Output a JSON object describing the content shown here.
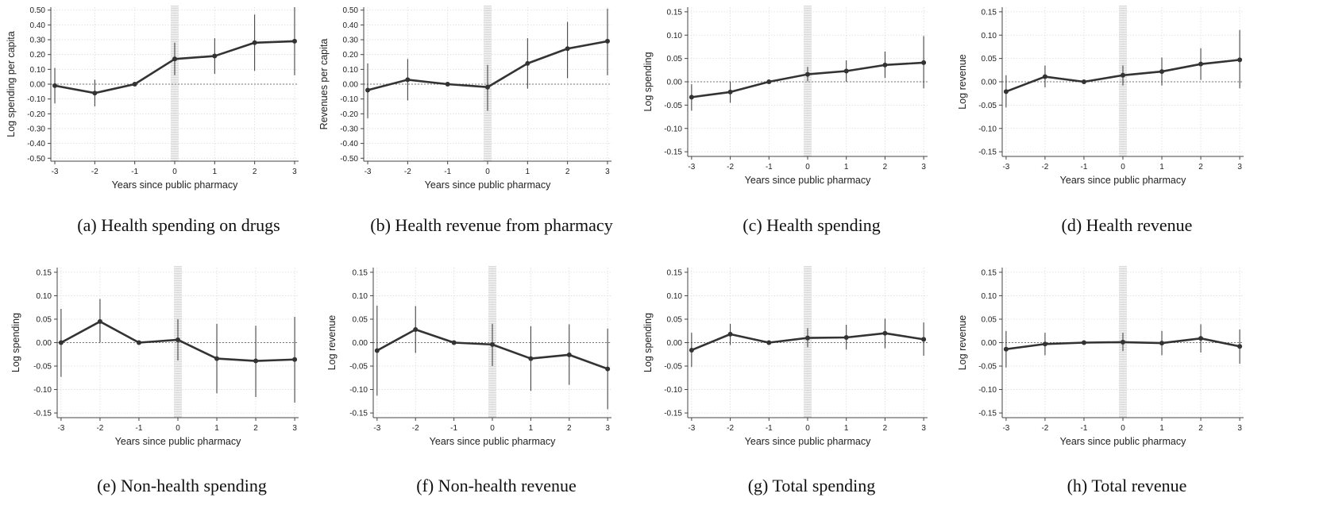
{
  "chart_data": [
    {
      "type": "line",
      "caption": "(a)  Health spending on drugs",
      "xlabel": "Years since public pharmacy",
      "ylabel": "Log spending per capita",
      "x": [
        -3,
        -2,
        -1,
        0,
        1,
        2,
        3
      ],
      "x_ticks": [
        "-3",
        "-2",
        "-1",
        "0",
        "1",
        "2",
        "3"
      ],
      "y_ticks": [
        "0.50",
        "0.40",
        "0.30",
        "0.20",
        "0.10",
        "0.00",
        "-0.10",
        "-0.20",
        "-0.30",
        "-0.40",
        "-0.50"
      ],
      "ylim": [
        -0.52,
        0.52
      ],
      "values": [
        -0.01,
        -0.06,
        0.0,
        0.17,
        0.19,
        0.28,
        0.29
      ],
      "ci_low": [
        -0.13,
        -0.15,
        0.0,
        0.06,
        0.07,
        0.09,
        0.06
      ],
      "ci_high": [
        0.11,
        0.03,
        0.0,
        0.28,
        0.31,
        0.47,
        0.52
      ],
      "event_line_x": 0,
      "zero_line": true
    },
    {
      "type": "line",
      "caption": "(b)  Health revenue from pharmacy",
      "xlabel": "Years since public pharmacy",
      "ylabel": "Revenues per capita",
      "x": [
        -3,
        -2,
        -1,
        0,
        1,
        2,
        3
      ],
      "x_ticks": [
        "-3",
        "-2",
        "-1",
        "0",
        "1",
        "2",
        "3"
      ],
      "y_ticks": [
        "0.50",
        "0.40",
        "0.30",
        "0.20",
        "0.10",
        "0.00",
        "-0.10",
        "-0.20",
        "-0.30",
        "-0.40",
        "-0.50"
      ],
      "ylim": [
        -0.52,
        0.52
      ],
      "values": [
        -0.04,
        0.03,
        0.0,
        -0.02,
        0.14,
        0.24,
        0.29
      ],
      "ci_low": [
        -0.23,
        -0.11,
        0.0,
        -0.18,
        -0.03,
        0.04,
        0.06
      ],
      "ci_high": [
        0.14,
        0.17,
        0.0,
        0.13,
        0.31,
        0.42,
        0.51
      ],
      "event_line_x": 0,
      "zero_line": true
    },
    {
      "type": "line",
      "caption": "(c)  Health spending",
      "xlabel": "Years since public pharmacy",
      "ylabel": "Log spending",
      "x": [
        -3,
        -2,
        -1,
        0,
        1,
        2,
        3
      ],
      "x_ticks": [
        "-3",
        "-2",
        "-1",
        "0",
        "1",
        "2",
        "3"
      ],
      "y_ticks": [
        "0.15",
        "0.10",
        "0.05",
        "0.00",
        "-0.05",
        "-0.10",
        "-0.15"
      ],
      "ylim": [
        -0.16,
        0.16
      ],
      "values": [
        -0.033,
        -0.022,
        0.0,
        0.016,
        0.023,
        0.036,
        0.041
      ],
      "ci_low": [
        -0.062,
        -0.045,
        0.0,
        0.001,
        0.0,
        0.008,
        -0.014
      ],
      "ci_high": [
        -0.005,
        0.001,
        0.0,
        0.032,
        0.046,
        0.065,
        0.098
      ],
      "event_line_x": 0,
      "zero_line": true
    },
    {
      "type": "line",
      "caption": "(d)  Health revenue",
      "xlabel": "Years since public pharmacy",
      "ylabel": "Log revenue",
      "x": [
        -3,
        -2,
        -1,
        0,
        1,
        2,
        3
      ],
      "x_ticks": [
        "-3",
        "-2",
        "-1",
        "0",
        "1",
        "2",
        "3"
      ],
      "y_ticks": [
        "0.15",
        "0.10",
        "0.05",
        "0.00",
        "-0.05",
        "-0.10",
        "-0.15"
      ],
      "ylim": [
        -0.16,
        0.16
      ],
      "values": [
        -0.021,
        0.011,
        0.0,
        0.014,
        0.022,
        0.038,
        0.047
      ],
      "ci_low": [
        -0.055,
        -0.012,
        0.0,
        -0.008,
        -0.008,
        0.004,
        -0.014
      ],
      "ci_high": [
        0.014,
        0.035,
        0.0,
        0.035,
        0.052,
        0.072,
        0.111
      ],
      "event_line_x": 0,
      "zero_line": true
    },
    {
      "type": "line",
      "caption": "(e)  Non-health spending",
      "xlabel": "Years since public pharmacy",
      "ylabel": "Log spending",
      "x": [
        -3,
        -2,
        -1,
        0,
        1,
        2,
        3
      ],
      "x_ticks": [
        "-3",
        "-2",
        "-1",
        "0",
        "1",
        "2",
        "3"
      ],
      "y_ticks": [
        "0.15",
        "0.10",
        "0.05",
        "0.00",
        "-0.05",
        "-0.10",
        "-0.15"
      ],
      "ylim": [
        -0.16,
        0.16
      ],
      "values": [
        0.0,
        0.045,
        0.0,
        0.006,
        -0.034,
        -0.039,
        -0.036
      ],
      "ci_low": [
        -0.073,
        0.0,
        0.0,
        -0.038,
        -0.108,
        -0.116,
        -0.128
      ],
      "ci_high": [
        0.072,
        0.093,
        0.0,
        0.05,
        0.04,
        0.036,
        0.055
      ],
      "event_line_x": 0,
      "zero_line": true
    },
    {
      "type": "line",
      "caption": "(f)  Non-health revenue",
      "xlabel": "Years since public pharmacy",
      "ylabel": "Log revenue",
      "x": [
        -3,
        -2,
        -1,
        0,
        1,
        2,
        3
      ],
      "x_ticks": [
        "-3",
        "-2",
        "-1",
        "0",
        "1",
        "2",
        "3"
      ],
      "y_ticks": [
        "0.15",
        "0.10",
        "0.05",
        "0.00",
        "-0.05",
        "-0.10",
        "-0.15"
      ],
      "ylim": [
        -0.16,
        0.16
      ],
      "values": [
        -0.017,
        0.028,
        0.0,
        -0.004,
        -0.034,
        -0.026,
        -0.056
      ],
      "ci_low": [
        -0.113,
        -0.022,
        0.0,
        -0.05,
        -0.103,
        -0.09,
        -0.142
      ],
      "ci_high": [
        0.079,
        0.078,
        0.0,
        0.04,
        0.035,
        0.039,
        0.03
      ],
      "event_line_x": 0,
      "zero_line": true
    },
    {
      "type": "line",
      "caption": "(g)  Total spending",
      "xlabel": "Years since public pharmacy",
      "ylabel": "Log spending",
      "x": [
        -3,
        -2,
        -1,
        0,
        1,
        2,
        3
      ],
      "x_ticks": [
        "-3",
        "-2",
        "-1",
        "0",
        "1",
        "2",
        "3"
      ],
      "y_ticks": [
        "0.15",
        "0.10",
        "0.05",
        "0.00",
        "-0.05",
        "-0.10",
        "-0.15"
      ],
      "ylim": [
        -0.16,
        0.16
      ],
      "values": [
        -0.016,
        0.018,
        0.0,
        0.01,
        0.011,
        0.02,
        0.007
      ],
      "ci_low": [
        -0.052,
        -0.005,
        0.0,
        -0.01,
        -0.015,
        -0.012,
        -0.028
      ],
      "ci_high": [
        0.021,
        0.04,
        0.0,
        0.031,
        0.038,
        0.051,
        0.043
      ],
      "event_line_x": 0,
      "zero_line": true
    },
    {
      "type": "line",
      "caption": "(h)  Total revenue",
      "xlabel": "Years since public pharmacy",
      "ylabel": "Log revenue",
      "x": [
        -3,
        -2,
        -1,
        0,
        1,
        2,
        3
      ],
      "x_ticks": [
        "-3",
        "-2",
        "-1",
        "0",
        "1",
        "2",
        "3"
      ],
      "y_ticks": [
        "0.15",
        "0.10",
        "0.05",
        "0.00",
        "-0.05",
        "-0.10",
        "-0.15"
      ],
      "ylim": [
        -0.16,
        0.16
      ],
      "values": [
        -0.014,
        -0.003,
        0.0,
        0.001,
        -0.001,
        0.009,
        -0.008
      ],
      "ci_low": [
        -0.053,
        -0.027,
        0.0,
        -0.018,
        -0.027,
        -0.021,
        -0.045
      ],
      "ci_high": [
        0.025,
        0.021,
        0.0,
        0.021,
        0.025,
        0.039,
        0.028
      ],
      "event_line_x": 0,
      "zero_line": true
    }
  ],
  "colors": {
    "line": "#333333",
    "grid": "#dcdcdc",
    "axis": "#444444",
    "zero_line": "#777777",
    "event_band": "#bdbdbd"
  }
}
